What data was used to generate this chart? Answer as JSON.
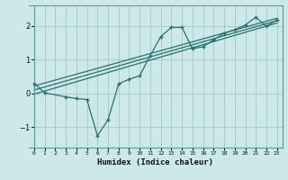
{
  "background_color": "#cce8e8",
  "grid_color": "#aacccc",
  "line_color": "#2a7070",
  "xlabel": "Humidex (Indice chaleur)",
  "xlim": [
    -0.5,
    23.5
  ],
  "ylim": [
    -1.6,
    2.6
  ],
  "yticks": [
    -1,
    0,
    1,
    2
  ],
  "xticks": [
    0,
    1,
    2,
    3,
    4,
    5,
    6,
    7,
    8,
    9,
    10,
    11,
    12,
    13,
    14,
    15,
    16,
    17,
    18,
    19,
    20,
    21,
    22,
    23
  ],
  "scatter_x": [
    0,
    1,
    3,
    4,
    5,
    6,
    7,
    8,
    9,
    10,
    11,
    12,
    13,
    14,
    15,
    16,
    17,
    18,
    19,
    20,
    21,
    22,
    23
  ],
  "scatter_y": [
    0.3,
    0.02,
    -0.1,
    -0.15,
    -0.18,
    -1.25,
    -0.78,
    0.28,
    0.42,
    0.52,
    1.12,
    1.68,
    1.95,
    1.95,
    1.32,
    1.38,
    1.58,
    1.78,
    1.88,
    2.02,
    2.25,
    1.98,
    2.18
  ],
  "line1_x": [
    0,
    23
  ],
  "line1_y": [
    -0.02,
    2.08
  ],
  "line2_x": [
    0,
    23
  ],
  "line2_y": [
    0.22,
    2.22
  ],
  "line3_x": [
    0,
    23
  ],
  "line3_y": [
    0.1,
    2.15
  ]
}
